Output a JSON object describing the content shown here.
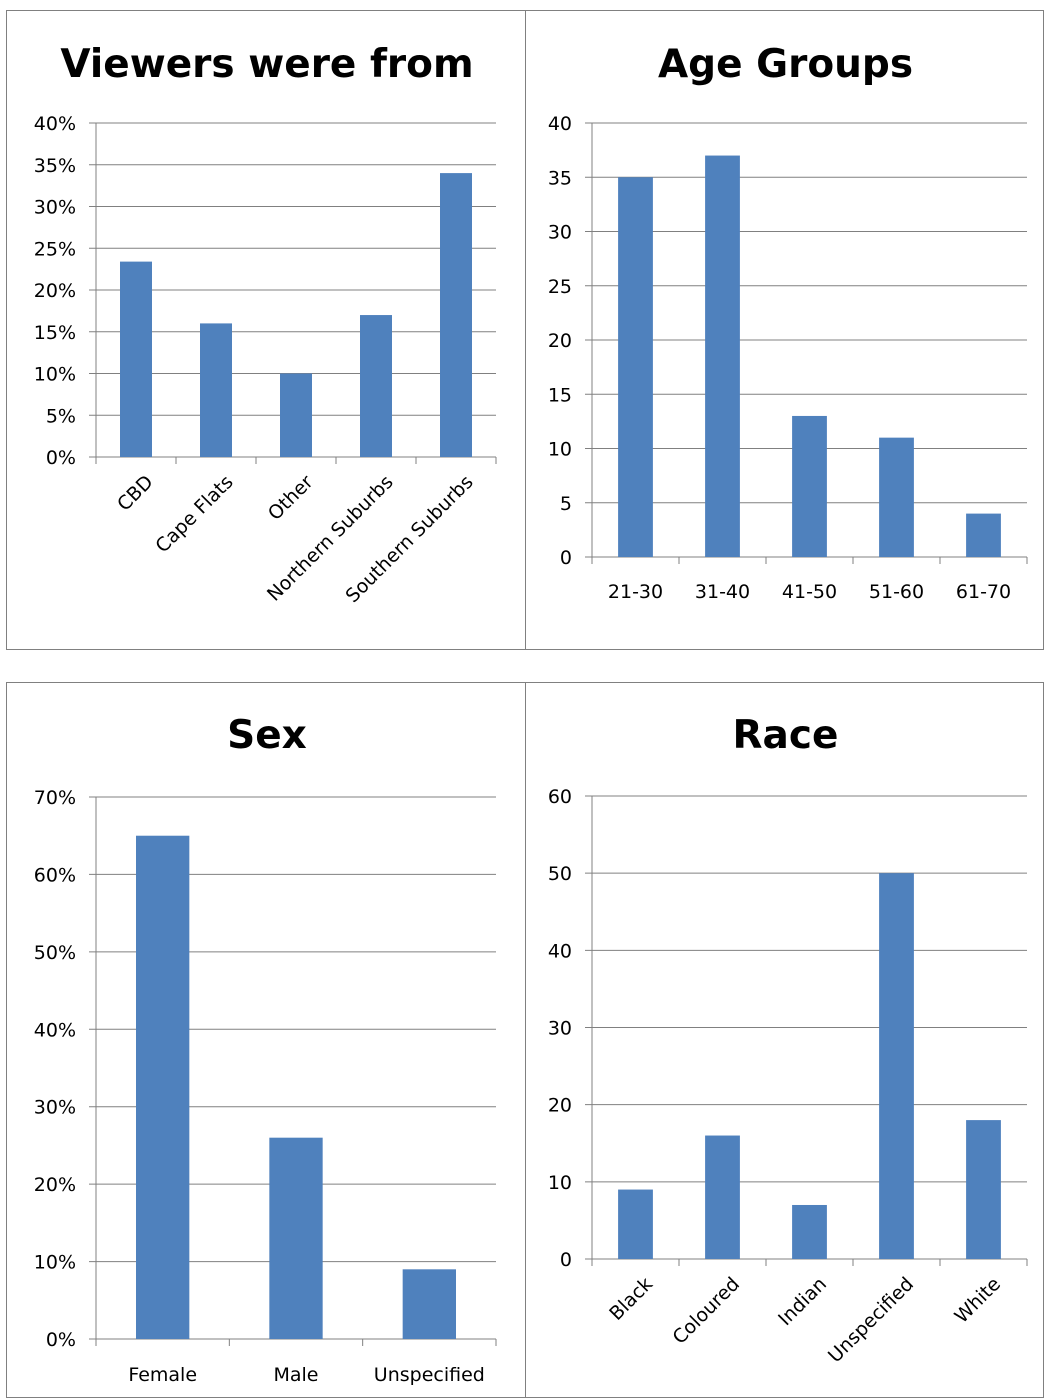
{
  "bar_color": "#4F81BD",
  "chart_data": [
    {
      "type": "bar",
      "title": "Viewers were from",
      "categories": [
        "CBD",
        "Cape Flats",
        "Other",
        "Northern Suburbs",
        "Southern Suburbs"
      ],
      "values": [
        23.4,
        16,
        10,
        17,
        34
      ],
      "value_format": "percent",
      "ylim": [
        0,
        40
      ],
      "ytick_step": 5,
      "yticks": [
        "0%",
        "5%",
        "10%",
        "15%",
        "20%",
        "25%",
        "30%",
        "35%",
        "40%"
      ],
      "label_rotation": "diagonal",
      "grid": true,
      "xlabel": "",
      "ylabel": ""
    },
    {
      "type": "bar",
      "title": "Age Groups",
      "categories": [
        "21-30",
        "31-40",
        "41-50",
        "51-60",
        "61-70"
      ],
      "values": [
        35,
        37,
        13,
        11,
        4
      ],
      "value_format": "number",
      "ylim": [
        0,
        40
      ],
      "ytick_step": 5,
      "yticks": [
        "0",
        "5",
        "10",
        "15",
        "20",
        "25",
        "30",
        "35",
        "40"
      ],
      "label_rotation": "horizontal",
      "grid": true,
      "xlabel": "",
      "ylabel": ""
    },
    {
      "type": "bar",
      "title": "Sex",
      "categories": [
        "Female",
        "Male",
        "Unspecified"
      ],
      "values": [
        65,
        26,
        9
      ],
      "value_format": "percent",
      "ylim": [
        0,
        70
      ],
      "ytick_step": 10,
      "yticks": [
        "0%",
        "10%",
        "20%",
        "30%",
        "40%",
        "50%",
        "60%",
        "70%"
      ],
      "label_rotation": "horizontal",
      "grid": true,
      "xlabel": "",
      "ylabel": ""
    },
    {
      "type": "bar",
      "title": "Race",
      "categories": [
        "Black",
        "Coloured",
        "Indian",
        "Unspecified",
        "White"
      ],
      "values": [
        9,
        16,
        7,
        50,
        18
      ],
      "value_format": "number",
      "ylim": [
        0,
        60
      ],
      "ytick_step": 10,
      "yticks": [
        "0",
        "10",
        "20",
        "30",
        "40",
        "50",
        "60"
      ],
      "label_rotation": "diagonal",
      "grid": true,
      "xlabel": "",
      "ylabel": ""
    }
  ]
}
